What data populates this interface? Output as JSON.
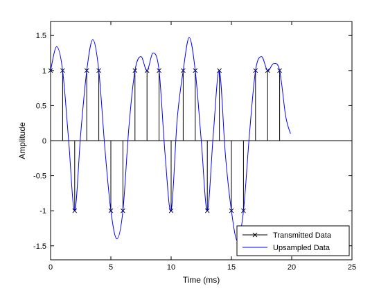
{
  "chart_data": {
    "type": "line",
    "title": "",
    "xlabel": "Time (ms)",
    "ylabel": "Amplitude",
    "xlim": [
      0,
      25
    ],
    "ylim": [
      -1.7,
      1.7
    ],
    "xticks": [
      0,
      5,
      10,
      15,
      20,
      25
    ],
    "yticks": [
      -1.5,
      -1,
      -0.5,
      0,
      0.5,
      1,
      1.5
    ],
    "xtick_labels": [
      "0",
      "5",
      "10",
      "15",
      "20",
      "25"
    ],
    "ytick_labels": [
      "-1.5",
      "-1",
      "-0.5",
      "0",
      "0.5",
      "1",
      "1.5"
    ],
    "grid": false,
    "legend_position": "bottom-right",
    "series": [
      {
        "name": "Transmitted Data",
        "style": "stem",
        "marker": "x",
        "color": "#000000",
        "x": [
          0,
          1,
          2,
          3,
          4,
          5,
          6,
          7,
          8,
          9,
          10,
          11,
          12,
          13,
          14,
          15,
          16,
          17,
          18,
          19
        ],
        "values": [
          1,
          1,
          -1,
          1,
          1,
          -1,
          -1,
          1,
          1,
          1,
          -1,
          1,
          1,
          -1,
          1,
          -1,
          -1,
          1,
          1,
          1
        ]
      },
      {
        "name": "Upsampled Data",
        "style": "line",
        "color": "#0000ff",
        "x": [
          0,
          0.5,
          1,
          1.5,
          2,
          2.5,
          3,
          3.5,
          4,
          4.5,
          5,
          5.5,
          6,
          6.5,
          7,
          7.5,
          8,
          8.5,
          9,
          9.5,
          10,
          10.5,
          11,
          11.5,
          12,
          12.5,
          13,
          13.5,
          14,
          14.5,
          15,
          15.5,
          16,
          16.5,
          17,
          17.5,
          18,
          18.5,
          19,
          19.5,
          19.9
        ],
        "values": [
          1,
          1.34,
          1,
          0.0,
          -1,
          0.1,
          1,
          1.44,
          1,
          -0.1,
          -1,
          -1.4,
          -1,
          0.2,
          1,
          1.2,
          1,
          1.25,
          1,
          -0.2,
          -1,
          0.3,
          1,
          1.47,
          1,
          0.0,
          -1,
          0.1,
          1,
          -0.2,
          -1,
          -1.43,
          -1,
          0.1,
          1,
          1.2,
          1,
          1.1,
          1,
          0.35,
          0.1
        ]
      }
    ]
  }
}
